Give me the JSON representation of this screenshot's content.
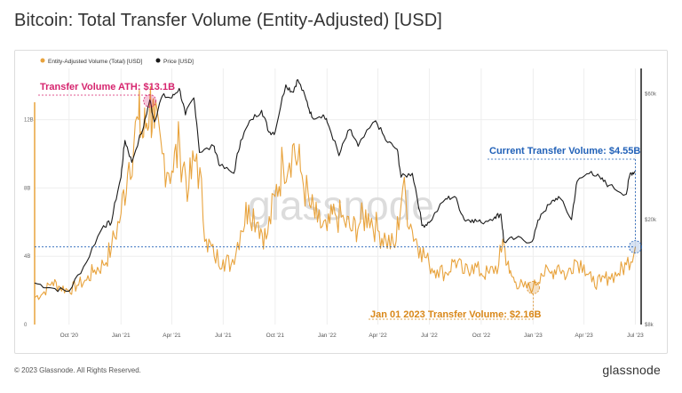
{
  "title": "Bitcoin: Total Transfer Volume (Entity-Adjusted) [USD]",
  "footer": {
    "copyright": "© 2023 Glassnode. All Rights Reserved.",
    "logo": "glassnode"
  },
  "watermark": "glassnode",
  "colors": {
    "volume": "#E8A33D",
    "price": "#1a1a1a",
    "ath": "#D6246E",
    "current": "#2161B8",
    "jan": "#D98718",
    "grid": "#eeeeee"
  },
  "chart_data": {
    "type": "line",
    "title": "Bitcoin: Total Transfer Volume (Entity-Adjusted) [USD]",
    "x_range": [
      "2020-08-01",
      "2023-07-05"
    ],
    "x_ticks": [
      {
        "date": "2020-10-01",
        "label": "Oct '20"
      },
      {
        "date": "2021-01-01",
        "label": "Jan '21"
      },
      {
        "date": "2021-04-01",
        "label": "Apr '21"
      },
      {
        "date": "2021-07-01",
        "label": "Jul '21"
      },
      {
        "date": "2021-10-01",
        "label": "Oct '21"
      },
      {
        "date": "2022-01-01",
        "label": "Jan '22"
      },
      {
        "date": "2022-04-01",
        "label": "Apr '22"
      },
      {
        "date": "2022-07-01",
        "label": "Jul '22"
      },
      {
        "date": "2022-10-01",
        "label": "Oct '22"
      },
      {
        "date": "2023-01-01",
        "label": "Jan '23"
      },
      {
        "date": "2023-04-01",
        "label": "Apr '23"
      },
      {
        "date": "2023-07-01",
        "label": "Jul '23"
      }
    ],
    "y_left": {
      "ticks": [
        {
          "v": 0,
          "label": "0"
        },
        {
          "v": 4,
          "label": "4B"
        },
        {
          "v": 8,
          "label": "8B"
        },
        {
          "v": 12,
          "label": "12B"
        }
      ],
      "range": [
        0,
        15
      ],
      "unit": "B USD"
    },
    "y_right": {
      "scale": "log",
      "ticks": [
        {
          "v": 8000,
          "label": "$8k"
        },
        {
          "v": 20000,
          "label": "$20k"
        },
        {
          "v": 60000,
          "label": "$60k"
        }
      ],
      "range": [
        8000,
        75000
      ]
    },
    "legend": {
      "placement": "top-left"
    },
    "series": [
      {
        "name": "Entity-Adjusted Volume (Total) [USD]",
        "axis": "left",
        "color": "#E8A33D",
        "points": [
          [
            "2020-08-01",
            1.6
          ],
          [
            "2020-08-15",
            1.8
          ],
          [
            "2020-09-01",
            2.5
          ],
          [
            "2020-09-15",
            2.2
          ],
          [
            "2020-10-01",
            2.0
          ],
          [
            "2020-10-15",
            2.3
          ],
          [
            "2020-11-01",
            2.6
          ],
          [
            "2020-11-15",
            3.2
          ],
          [
            "2020-12-01",
            3.5
          ],
          [
            "2020-12-15",
            4.5
          ],
          [
            "2021-01-01",
            6.5
          ],
          [
            "2021-01-15",
            9.5
          ],
          [
            "2021-02-01",
            12.0
          ],
          [
            "2021-02-10",
            11.0
          ],
          [
            "2021-02-21",
            13.1
          ],
          [
            "2021-03-01",
            11.5
          ],
          [
            "2021-03-15",
            10.0
          ],
          [
            "2021-04-01",
            9.0
          ],
          [
            "2021-04-15",
            10.5
          ],
          [
            "2021-05-01",
            8.0
          ],
          [
            "2021-05-15",
            10.0
          ],
          [
            "2021-06-01",
            5.0
          ],
          [
            "2021-06-15",
            4.0
          ],
          [
            "2021-07-01",
            3.8
          ],
          [
            "2021-07-15",
            3.5
          ],
          [
            "2021-08-01",
            5.5
          ],
          [
            "2021-08-15",
            7.0
          ],
          [
            "2021-09-01",
            6.0
          ],
          [
            "2021-09-15",
            5.0
          ],
          [
            "2021-10-01",
            7.5
          ],
          [
            "2021-10-15",
            9.5
          ],
          [
            "2021-11-01",
            10.5
          ],
          [
            "2021-11-15",
            9.0
          ],
          [
            "2021-12-01",
            7.0
          ],
          [
            "2021-12-15",
            6.0
          ],
          [
            "2022-01-01",
            5.5
          ],
          [
            "2022-01-15",
            6.5
          ],
          [
            "2022-02-01",
            6.0
          ],
          [
            "2022-02-15",
            5.5
          ],
          [
            "2022-03-01",
            6.0
          ],
          [
            "2022-03-15",
            6.5
          ],
          [
            "2022-04-01",
            5.5
          ],
          [
            "2022-04-15",
            5.0
          ],
          [
            "2022-05-01",
            4.5
          ],
          [
            "2022-05-15",
            8.0
          ],
          [
            "2022-06-01",
            5.5
          ],
          [
            "2022-06-15",
            4.5
          ],
          [
            "2022-07-01",
            3.5
          ],
          [
            "2022-07-15",
            3.2
          ],
          [
            "2022-08-01",
            3.0
          ],
          [
            "2022-08-15",
            3.8
          ],
          [
            "2022-09-01",
            3.0
          ],
          [
            "2022-09-15",
            3.5
          ],
          [
            "2022-10-01",
            3.0
          ],
          [
            "2022-10-15",
            3.0
          ],
          [
            "2022-11-01",
            3.5
          ],
          [
            "2022-11-08",
            5.0
          ],
          [
            "2022-11-20",
            3.0
          ],
          [
            "2022-12-01",
            2.5
          ],
          [
            "2022-12-15",
            2.2
          ],
          [
            "2023-01-01",
            2.16
          ],
          [
            "2023-01-15",
            3.0
          ],
          [
            "2023-02-01",
            3.0
          ],
          [
            "2023-02-15",
            3.5
          ],
          [
            "2023-03-01",
            2.8
          ],
          [
            "2023-03-15",
            3.8
          ],
          [
            "2023-04-01",
            3.5
          ],
          [
            "2023-04-15",
            2.5
          ],
          [
            "2023-05-01",
            2.5
          ],
          [
            "2023-05-15",
            2.8
          ],
          [
            "2023-06-01",
            3.0
          ],
          [
            "2023-06-15",
            3.5
          ],
          [
            "2023-07-01",
            4.55
          ]
        ]
      },
      {
        "name": "Price [USD]",
        "axis": "right",
        "color": "#1a1a1a",
        "points": [
          [
            "2020-08-01",
            11500
          ],
          [
            "2020-09-01",
            11000
          ],
          [
            "2020-10-01",
            10700
          ],
          [
            "2020-11-01",
            13800
          ],
          [
            "2020-12-01",
            19000
          ],
          [
            "2020-12-15",
            19500
          ],
          [
            "2021-01-01",
            29000
          ],
          [
            "2021-01-08",
            40000
          ],
          [
            "2021-01-20",
            33000
          ],
          [
            "2021-02-10",
            45000
          ],
          [
            "2021-02-21",
            57000
          ],
          [
            "2021-03-01",
            47000
          ],
          [
            "2021-03-15",
            59000
          ],
          [
            "2021-04-01",
            58000
          ],
          [
            "2021-04-14",
            63000
          ],
          [
            "2021-04-25",
            50000
          ],
          [
            "2021-05-10",
            58000
          ],
          [
            "2021-05-20",
            36000
          ],
          [
            "2021-06-15",
            38000
          ],
          [
            "2021-06-25",
            32000
          ],
          [
            "2021-07-20",
            30000
          ],
          [
            "2021-08-01",
            40000
          ],
          [
            "2021-08-20",
            48000
          ],
          [
            "2021-09-07",
            52000
          ],
          [
            "2021-09-20",
            43000
          ],
          [
            "2021-10-01",
            43000
          ],
          [
            "2021-10-20",
            65000
          ],
          [
            "2021-11-01",
            61000
          ],
          [
            "2021-11-10",
            68000
          ],
          [
            "2021-11-25",
            57000
          ],
          [
            "2021-12-05",
            49000
          ],
          [
            "2021-12-25",
            50000
          ],
          [
            "2022-01-01",
            47000
          ],
          [
            "2022-01-22",
            35000
          ],
          [
            "2022-02-10",
            44000
          ],
          [
            "2022-02-25",
            38000
          ],
          [
            "2022-03-28",
            47500
          ],
          [
            "2022-04-15",
            40000
          ],
          [
            "2022-05-05",
            37000
          ],
          [
            "2022-05-12",
            29000
          ],
          [
            "2022-06-01",
            30000
          ],
          [
            "2022-06-18",
            19000
          ],
          [
            "2022-07-01",
            19500
          ],
          [
            "2022-07-30",
            24000
          ],
          [
            "2022-08-15",
            24500
          ],
          [
            "2022-09-01",
            20000
          ],
          [
            "2022-09-15",
            20000
          ],
          [
            "2022-10-01",
            19500
          ],
          [
            "2022-10-25",
            20500
          ],
          [
            "2022-11-05",
            21000
          ],
          [
            "2022-11-10",
            16500
          ],
          [
            "2022-12-01",
            17000
          ],
          [
            "2022-12-30",
            16500
          ],
          [
            "2023-01-15",
            21000
          ],
          [
            "2023-02-01",
            23000
          ],
          [
            "2023-02-15",
            24500
          ],
          [
            "2023-03-10",
            20000
          ],
          [
            "2023-03-20",
            28000
          ],
          [
            "2023-04-14",
            30500
          ],
          [
            "2023-05-01",
            28500
          ],
          [
            "2023-05-15",
            27000
          ],
          [
            "2023-06-15",
            25000
          ],
          [
            "2023-06-22",
            30000
          ],
          [
            "2023-07-01",
            30500
          ]
        ]
      }
    ],
    "annotations": {
      "ath": {
        "label": "Transfer Volume ATH: $13.1B",
        "date": "2021-02-21",
        "value": 13.1
      },
      "current": {
        "label": "Current Transfer Volume: $4.55B",
        "date": "2023-07-01",
        "value": 4.55
      },
      "jan": {
        "label": "Jan 01 2023 Transfer Volume: $2.16B",
        "date": "2023-01-01",
        "value": 2.16
      }
    }
  }
}
